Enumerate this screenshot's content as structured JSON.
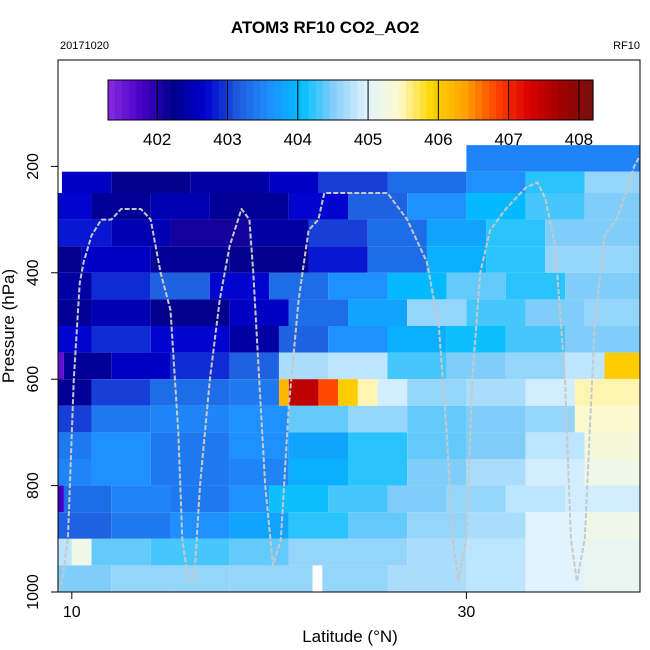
{
  "header": {
    "title": "ATOM3 RF10 CO2_AO2",
    "date": "20171020",
    "flight": "RF10"
  },
  "chart_data": {
    "type": "heatmap",
    "title": "ATOM3 RF10 CO2_AO2",
    "xlabel": "Latitude (°N)",
    "ylabel": "Pressure (hPa)",
    "xlim": [
      9.3,
      38.8
    ],
    "ylim": [
      1000,
      0
    ],
    "xticks": [
      10,
      30
    ],
    "yticks": [
      200,
      400,
      600,
      800,
      1000
    ],
    "grid": false,
    "colorbar": {
      "position": "top-inside",
      "vmin": 401.3,
      "vmax": 408.2,
      "ticks": [
        402,
        403,
        404,
        405,
        406,
        407,
        408
      ],
      "colors": [
        "#8a2be2",
        "#4b00c8",
        "#00008b",
        "#0000cd",
        "#1e5adc",
        "#1e90ff",
        "#00bfff",
        "#87cefa",
        "#e0f4ff",
        "#fffacd",
        "#ffd700",
        "#ffa500",
        "#ff4500",
        "#dc0000",
        "#a00000",
        "#7a1010"
      ]
    },
    "x_columns": [
      9.3,
      9.5,
      10,
      10.5,
      11,
      11.5,
      12,
      12.5,
      13,
      13.5,
      14,
      14.5,
      15,
      15.5,
      16,
      16.5,
      17,
      17.5,
      18,
      18.5,
      19,
      19.5,
      20,
      20.5,
      21,
      21.5,
      22,
      22.5,
      23,
      23.5,
      24,
      24.5,
      25,
      25.5,
      26,
      26.5,
      27,
      27.5,
      28,
      28.5,
      29,
      29.5,
      30,
      30.5,
      31,
      31.5,
      32,
      32.5,
      33,
      33.5,
      34,
      34.5,
      35,
      35.5,
      36,
      36.5,
      37,
      37.5,
      38,
      38.8
    ],
    "rows": [
      {
        "p_top": 160,
        "p_bottom": 210,
        "segments": [
          [
            30,
            38.8,
            403.5
          ]
        ]
      },
      {
        "p_top": 210,
        "p_bottom": 250,
        "segments": [
          [
            9.5,
            12,
            402.6
          ],
          [
            12,
            16,
            402.2
          ],
          [
            16,
            20,
            402.4
          ],
          [
            20,
            22.5,
            402.6
          ],
          [
            22.5,
            26,
            403.0
          ],
          [
            26,
            30,
            403.3
          ],
          [
            30,
            33,
            403.6
          ],
          [
            33,
            36,
            404.2
          ],
          [
            36,
            38.8,
            404.6
          ]
        ]
      },
      {
        "p_top": 250,
        "p_bottom": 300,
        "segments": [
          [
            9.3,
            11,
            402.7
          ],
          [
            11,
            14,
            402.3
          ],
          [
            14,
            17,
            402.5
          ],
          [
            17,
            21,
            402.3
          ],
          [
            21,
            24,
            402.7
          ],
          [
            24,
            27,
            403.2
          ],
          [
            27,
            30,
            403.6
          ],
          [
            30,
            33,
            404.0
          ],
          [
            33,
            36,
            404.3
          ],
          [
            36,
            38.8,
            404.5
          ]
        ]
      },
      {
        "p_top": 300,
        "p_bottom": 350,
        "segments": [
          [
            9.3,
            12,
            402.8
          ],
          [
            12,
            15,
            402.5
          ],
          [
            15,
            19,
            402.1
          ],
          [
            19,
            22,
            402.4
          ],
          [
            22,
            25,
            403.0
          ],
          [
            25,
            28,
            403.3
          ],
          [
            28,
            31,
            403.8
          ],
          [
            31,
            34,
            404.2
          ],
          [
            34,
            38.8,
            404.5
          ]
        ]
      },
      {
        "p_top": 350,
        "p_bottom": 400,
        "segments": [
          [
            9.3,
            10.5,
            402.2
          ],
          [
            10.5,
            14,
            402.6
          ],
          [
            14,
            18,
            402.3
          ],
          [
            18,
            22,
            402.2
          ],
          [
            22,
            25,
            402.8
          ],
          [
            25,
            28,
            403.3
          ],
          [
            28,
            31,
            403.9
          ],
          [
            31,
            34,
            404.2
          ],
          [
            34,
            38.8,
            404.6
          ]
        ]
      },
      {
        "p_top": 400,
        "p_bottom": 450,
        "segments": [
          [
            9.3,
            11,
            402.4
          ],
          [
            11,
            14,
            402.9
          ],
          [
            14,
            17,
            403.2
          ],
          [
            17,
            20,
            402.7
          ],
          [
            20,
            23,
            403.3
          ],
          [
            23,
            26,
            403.6
          ],
          [
            26,
            29,
            404.0
          ],
          [
            29,
            32,
            404.4
          ],
          [
            32,
            35,
            404.2
          ],
          [
            35,
            38.8,
            404.5
          ]
        ]
      },
      {
        "p_top": 450,
        "p_bottom": 500,
        "segments": [
          [
            9.3,
            11,
            402.3
          ],
          [
            11,
            14,
            402.5
          ],
          [
            14,
            18,
            402.2
          ],
          [
            18,
            21,
            402.6
          ],
          [
            21,
            24,
            403.3
          ],
          [
            24,
            27,
            403.8
          ],
          [
            27,
            30,
            404.6
          ],
          [
            30,
            33,
            404.3
          ],
          [
            33,
            36,
            404.5
          ],
          [
            36,
            38.8,
            404.6
          ]
        ]
      },
      {
        "p_top": 500,
        "p_bottom": 550,
        "segments": [
          [
            9.3,
            11,
            402.7
          ],
          [
            11,
            14,
            402.9
          ],
          [
            14,
            18,
            402.7
          ],
          [
            18,
            20.5,
            402.4
          ],
          [
            20.5,
            23,
            403.2
          ],
          [
            23,
            26,
            403.6
          ],
          [
            26,
            29,
            403.9
          ],
          [
            29,
            32,
            404.1
          ],
          [
            32,
            35,
            404.3
          ],
          [
            35,
            38.8,
            404.5
          ]
        ]
      },
      {
        "p_top": 550,
        "p_bottom": 600,
        "segments": [
          [
            9.3,
            9.6,
            401.6
          ],
          [
            9.6,
            12,
            402.3
          ],
          [
            12,
            15,
            402.6
          ],
          [
            15,
            18,
            402.9
          ],
          [
            18,
            20.5,
            403.2
          ],
          [
            20.5,
            23,
            404.7
          ],
          [
            23,
            26,
            404.8
          ],
          [
            26,
            29,
            404.3
          ],
          [
            29,
            32,
            404.5
          ],
          [
            32,
            35,
            404.6
          ],
          [
            35,
            37,
            404.8
          ],
          [
            37,
            38.8,
            406.0
          ]
        ]
      },
      {
        "p_top": 600,
        "p_bottom": 650,
        "segments": [
          [
            9.3,
            11,
            402.3
          ],
          [
            11,
            14,
            403.0
          ],
          [
            14,
            18,
            403.3
          ],
          [
            18,
            20.5,
            403.4
          ],
          [
            20.5,
            21,
            406.2
          ],
          [
            21,
            22.5,
            407.5
          ],
          [
            22.5,
            23.5,
            406.8
          ],
          [
            23.5,
            24.5,
            406.0
          ],
          [
            24.5,
            25.5,
            405.5
          ],
          [
            25.5,
            27,
            404.9
          ],
          [
            27,
            30,
            404.6
          ],
          [
            30,
            33,
            404.7
          ],
          [
            33,
            35.5,
            404.9
          ],
          [
            35.5,
            38.8,
            405.5
          ]
        ]
      },
      {
        "p_top": 650,
        "p_bottom": 700,
        "segments": [
          [
            9.3,
            11,
            403.0
          ],
          [
            11,
            14,
            403.4
          ],
          [
            14,
            18,
            403.5
          ],
          [
            18,
            21,
            403.6
          ],
          [
            21,
            24,
            404.4
          ],
          [
            24,
            27,
            404.6
          ],
          [
            27,
            30,
            404.4
          ],
          [
            30,
            33,
            404.5
          ],
          [
            33,
            35.5,
            404.6
          ],
          [
            35.5,
            38.8,
            405.4
          ]
        ]
      },
      {
        "p_top": 700,
        "p_bottom": 750,
        "segments": [
          [
            9.3,
            11,
            403.4
          ],
          [
            11,
            14,
            403.6
          ],
          [
            14,
            18,
            403.4
          ],
          [
            18,
            21,
            403.6
          ],
          [
            21,
            24,
            403.8
          ],
          [
            24,
            27,
            404.2
          ],
          [
            27,
            30,
            404.4
          ],
          [
            30,
            33,
            404.5
          ],
          [
            33,
            36,
            404.8
          ],
          [
            36,
            38.8,
            405.3
          ]
        ]
      },
      {
        "p_top": 750,
        "p_bottom": 800,
        "segments": [
          [
            9.3,
            11,
            403.5
          ],
          [
            11,
            14,
            403.6
          ],
          [
            14,
            18,
            403.4
          ],
          [
            18,
            21,
            403.5
          ],
          [
            21,
            24,
            403.9
          ],
          [
            24,
            27,
            404.2
          ],
          [
            27,
            30,
            404.5
          ],
          [
            30,
            33,
            404.7
          ],
          [
            33,
            36,
            404.9
          ],
          [
            36,
            38.8,
            405.2
          ]
        ]
      },
      {
        "p_top": 800,
        "p_bottom": 850,
        "segments": [
          [
            9.3,
            9.6,
            401.8
          ],
          [
            9.6,
            12,
            403.3
          ],
          [
            12,
            15,
            403.5
          ],
          [
            15,
            18,
            403.4
          ],
          [
            18,
            20,
            403.6
          ],
          [
            20,
            23,
            404.1
          ],
          [
            23,
            26,
            404.3
          ],
          [
            26,
            29,
            404.5
          ],
          [
            29,
            32,
            404.6
          ],
          [
            32,
            35,
            404.8
          ],
          [
            35,
            38.8,
            404.9
          ]
        ]
      },
      {
        "p_top": 850,
        "p_bottom": 900,
        "segments": [
          [
            9.3,
            12,
            403.2
          ],
          [
            12,
            15,
            403.4
          ],
          [
            15,
            18,
            403.6
          ],
          [
            18,
            21,
            403.8
          ],
          [
            21,
            24,
            404.2
          ],
          [
            24,
            27,
            404.4
          ],
          [
            27,
            30,
            404.6
          ],
          [
            30,
            33,
            404.7
          ],
          [
            33,
            36,
            405.0
          ],
          [
            36,
            38.8,
            405.2
          ]
        ]
      },
      {
        "p_top": 900,
        "p_bottom": 950,
        "segments": [
          [
            9.3,
            10,
            404.8
          ],
          [
            10,
            11,
            405.2
          ],
          [
            11,
            14,
            404.4
          ],
          [
            14,
            18,
            404.3
          ],
          [
            18,
            21,
            404.4
          ],
          [
            21,
            24,
            404.6
          ],
          [
            24,
            27,
            404.6
          ],
          [
            27,
            30,
            404.7
          ],
          [
            30,
            33,
            404.8
          ],
          [
            33,
            36,
            405.0
          ],
          [
            36,
            38.8,
            405.1
          ]
        ]
      },
      {
        "p_top": 950,
        "p_bottom": 1000,
        "segments": [
          [
            9.3,
            12,
            404.5
          ],
          [
            12,
            15,
            404.6
          ],
          [
            15,
            18,
            404.6
          ],
          [
            18,
            22.2,
            404.6
          ],
          [
            22.7,
            26,
            404.6
          ],
          [
            26,
            30,
            404.7
          ],
          [
            30,
            33,
            404.8
          ],
          [
            33,
            36,
            405.0
          ],
          [
            36,
            38.8,
            405.1
          ]
        ]
      }
    ],
    "flight_track": [
      [
        9.3,
        1000
      ],
      [
        9.5,
        980
      ],
      [
        9.8,
        900
      ],
      [
        10.1,
        600
      ],
      [
        10.4,
        420
      ],
      [
        10.6,
        380
      ],
      [
        11,
        330
      ],
      [
        11.5,
        300
      ],
      [
        12,
        300
      ],
      [
        12.5,
        280
      ],
      [
        13,
        280
      ],
      [
        13.5,
        280
      ],
      [
        14,
        300
      ],
      [
        14.5,
        400
      ],
      [
        15,
        470
      ],
      [
        15.4,
        700
      ],
      [
        15.6,
        900
      ],
      [
        15.9,
        980
      ],
      [
        16.2,
        980
      ],
      [
        16.5,
        800
      ],
      [
        17,
        600
      ],
      [
        17.5,
        450
      ],
      [
        18,
        350
      ],
      [
        18.6,
        280
      ],
      [
        19,
        300
      ],
      [
        19.2,
        400
      ],
      [
        19.5,
        600
      ],
      [
        19.8,
        800
      ],
      [
        20.2,
        950
      ],
      [
        20.6,
        900
      ],
      [
        21,
        650
      ],
      [
        21.5,
        450
      ],
      [
        22,
        320
      ],
      [
        22.5,
        300
      ],
      [
        22.8,
        250
      ],
      [
        24,
        250
      ],
      [
        25,
        250
      ],
      [
        26,
        250
      ],
      [
        27,
        300
      ],
      [
        28,
        380
      ],
      [
        28.6,
        500
      ],
      [
        29,
        700
      ],
      [
        29.3,
        900
      ],
      [
        29.6,
        980
      ],
      [
        30,
        900
      ],
      [
        30.3,
        600
      ],
      [
        30.7,
        400
      ],
      [
        31.2,
        320
      ],
      [
        32,
        280
      ],
      [
        33,
        240
      ],
      [
        33.6,
        230
      ],
      [
        34,
        260
      ],
      [
        34.5,
        350
      ],
      [
        35,
        600
      ],
      [
        35.3,
        900
      ],
      [
        35.6,
        980
      ],
      [
        36,
        900
      ],
      [
        36.5,
        500
      ],
      [
        37,
        330
      ],
      [
        37.6,
        300
      ],
      [
        38,
        260
      ],
      [
        38.5,
        200
      ],
      [
        38.8,
        180
      ]
    ]
  }
}
